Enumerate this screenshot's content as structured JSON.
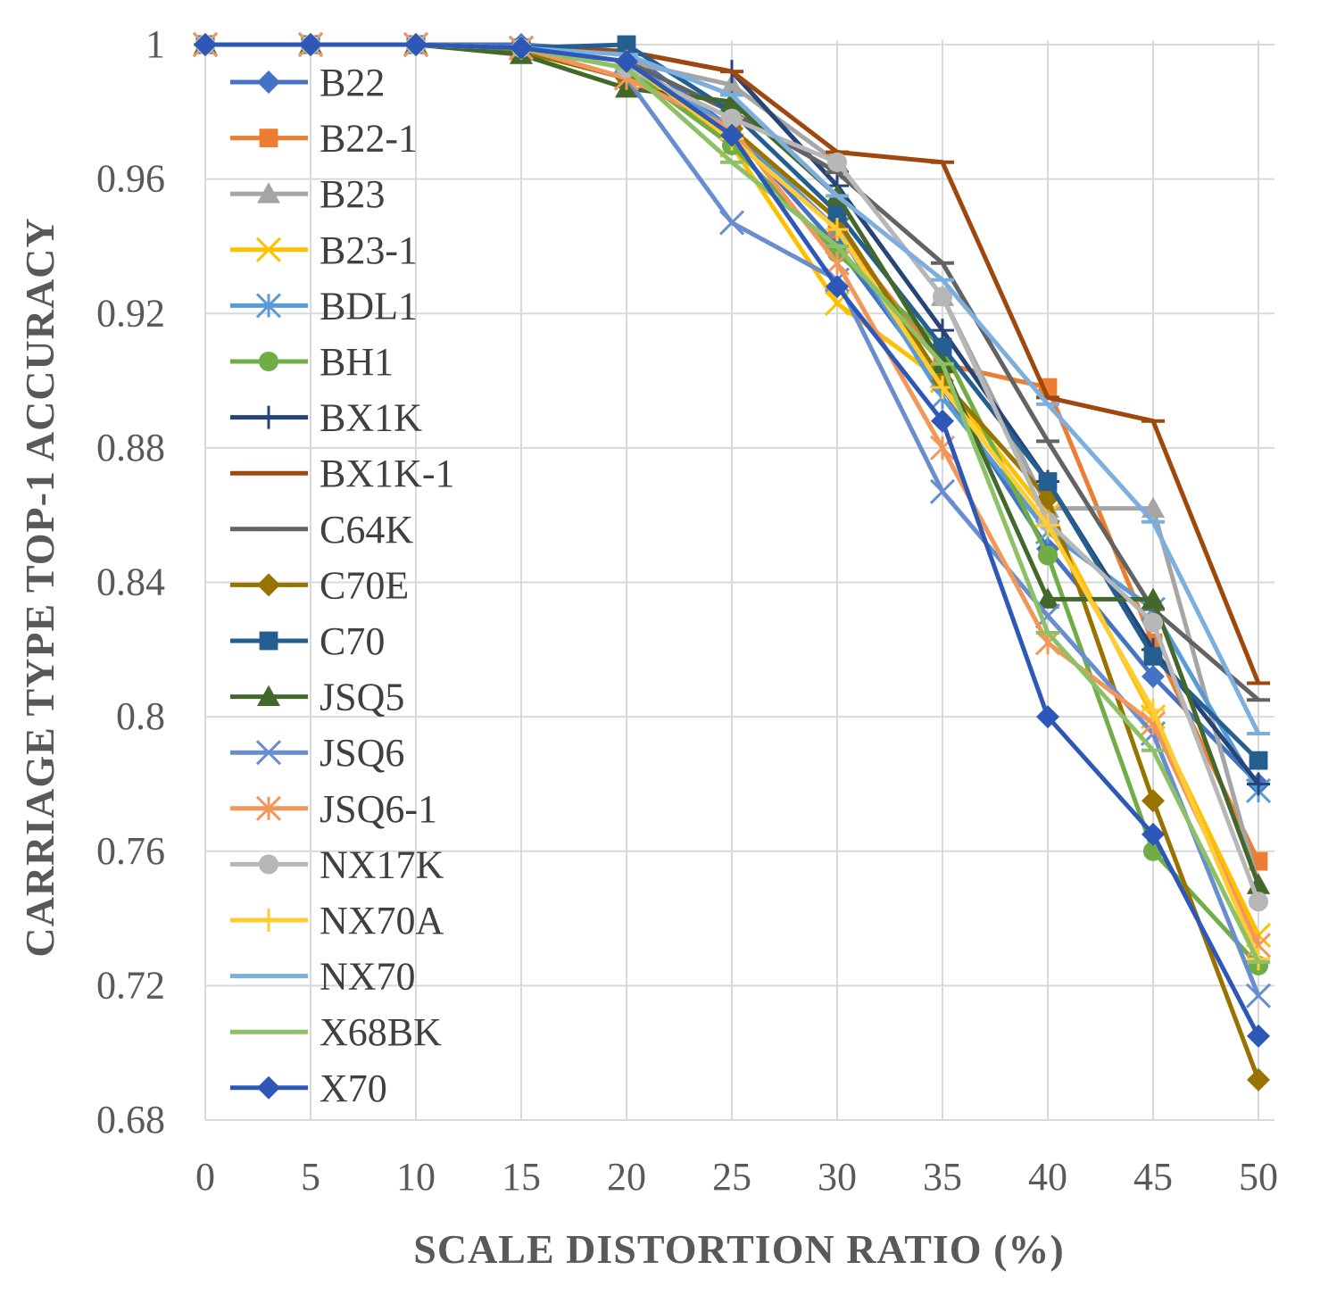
{
  "chart_data": {
    "type": "line",
    "title": "",
    "xlabel": "SCALE DISTORTION RATIO  (%)",
    "ylabel": "CARRIAGE TYPE TOP-1 ACCURACY",
    "x": [
      0,
      5,
      10,
      15,
      20,
      25,
      30,
      35,
      40,
      45,
      50
    ],
    "x_tick_labels": [
      "0",
      "5",
      "10",
      "15",
      "20",
      "25",
      "30",
      "35",
      "40",
      "45",
      "50"
    ],
    "y_tick_labels": [
      "0.68",
      "0.72",
      "0.76",
      "0.8",
      "0.84",
      "0.88",
      "0.92",
      "0.96",
      "1"
    ],
    "xlim": [
      0,
      50
    ],
    "ylim": [
      0.68,
      1.0
    ],
    "grid": true,
    "legend_position": "left, inside plot",
    "series": [
      {
        "name": "B22",
        "color": "#4472c4",
        "marker": "diamond",
        "values": [
          1,
          1,
          1,
          1,
          0.998,
          0.975,
          0.94,
          0.898,
          0.85,
          0.812,
          0.78
        ]
      },
      {
        "name": "B22-1",
        "color": "#ed7d31",
        "marker": "square",
        "values": [
          1,
          1,
          1,
          0.998,
          0.99,
          0.975,
          0.945,
          0.905,
          0.898,
          0.822,
          0.757
        ]
      },
      {
        "name": "B23",
        "color": "#a5a5a5",
        "marker": "triangle",
        "values": [
          1,
          1,
          1,
          0.999,
          0.995,
          0.988,
          0.965,
          0.925,
          0.862,
          0.862,
          0.75
        ]
      },
      {
        "name": "B23-1",
        "color": "#ffc000",
        "marker": "x",
        "values": [
          1,
          1,
          1,
          0.999,
          0.995,
          0.97,
          0.923,
          0.9,
          0.86,
          0.8,
          0.735
        ]
      },
      {
        "name": "BDL1",
        "color": "#5b9bd5",
        "marker": "asterisk",
        "values": [
          1,
          1,
          1,
          0.999,
          0.995,
          0.975,
          0.945,
          0.895,
          0.855,
          0.832,
          0.778
        ]
      },
      {
        "name": "BH1",
        "color": "#70ad47",
        "marker": "circle",
        "values": [
          1,
          1,
          1,
          0.999,
          0.993,
          0.97,
          0.938,
          0.91,
          0.848,
          0.76,
          0.726
        ]
      },
      {
        "name": "BX1K",
        "color": "#264478",
        "marker": "plus",
        "values": [
          1,
          1,
          1,
          0.999,
          0.998,
          0.992,
          0.958,
          0.915,
          0.87,
          0.82,
          0.78
        ]
      },
      {
        "name": "BX1K-1",
        "color": "#9e480e",
        "marker": "dash",
        "values": [
          1,
          1,
          1,
          0.999,
          0.998,
          0.992,
          0.968,
          0.965,
          0.895,
          0.888,
          0.81
        ]
      },
      {
        "name": "C64K",
        "color": "#636363",
        "marker": "dash",
        "values": [
          1,
          1,
          1,
          0.999,
          0.995,
          0.98,
          0.962,
          0.935,
          0.882,
          0.832,
          0.805
        ]
      },
      {
        "name": "C70E",
        "color": "#997300",
        "marker": "diamond",
        "values": [
          1,
          1,
          1,
          0.998,
          0.99,
          0.975,
          0.948,
          0.9,
          0.865,
          0.775,
          0.692
        ]
      },
      {
        "name": "C70",
        "color": "#255e91",
        "marker": "square",
        "values": [
          1,
          1,
          1,
          0.999,
          1.0,
          0.98,
          0.95,
          0.91,
          0.87,
          0.818,
          0.787
        ]
      },
      {
        "name": "JSQ5",
        "color": "#43682b",
        "marker": "triangle",
        "values": [
          1,
          1,
          1,
          0.997,
          0.987,
          0.983,
          0.955,
          0.905,
          0.835,
          0.835,
          0.75
        ]
      },
      {
        "name": "JSQ6",
        "color": "#698ed0",
        "marker": "x",
        "values": [
          1,
          1,
          1,
          0.999,
          0.99,
          0.947,
          0.93,
          0.867,
          0.83,
          0.795,
          0.717
        ]
      },
      {
        "name": "JSQ6-1",
        "color": "#f1975a",
        "marker": "asterisk",
        "values": [
          1,
          1,
          1,
          0.999,
          0.99,
          0.975,
          0.935,
          0.88,
          0.822,
          0.798,
          0.732
        ]
      },
      {
        "name": "NX17K",
        "color": "#b7b7b7",
        "marker": "circle",
        "values": [
          1,
          1,
          1,
          0.999,
          0.993,
          0.978,
          0.965,
          0.925,
          0.858,
          0.828,
          0.745
        ]
      },
      {
        "name": "NX70A",
        "color": "#ffcd33",
        "marker": "plus",
        "values": [
          1,
          1,
          1,
          0.999,
          0.995,
          0.972,
          0.945,
          0.898,
          0.857,
          0.802,
          0.728
        ]
      },
      {
        "name": "NX70",
        "color": "#7cafdd",
        "marker": "dash",
        "values": [
          1,
          1,
          1,
          0.999,
          0.997,
          0.985,
          0.955,
          0.93,
          0.893,
          0.858,
          0.795
        ]
      },
      {
        "name": "X68BK",
        "color": "#8cc168",
        "marker": "dash",
        "values": [
          1,
          1,
          1,
          0.999,
          0.993,
          0.965,
          0.94,
          0.905,
          0.825,
          0.79,
          0.727
        ]
      },
      {
        "name": "X70",
        "color": "#2e58b8",
        "marker": "diamond",
        "values": [
          1,
          1,
          1,
          0.999,
          0.995,
          0.973,
          0.928,
          0.888,
          0.8,
          0.765,
          0.705
        ]
      }
    ]
  }
}
